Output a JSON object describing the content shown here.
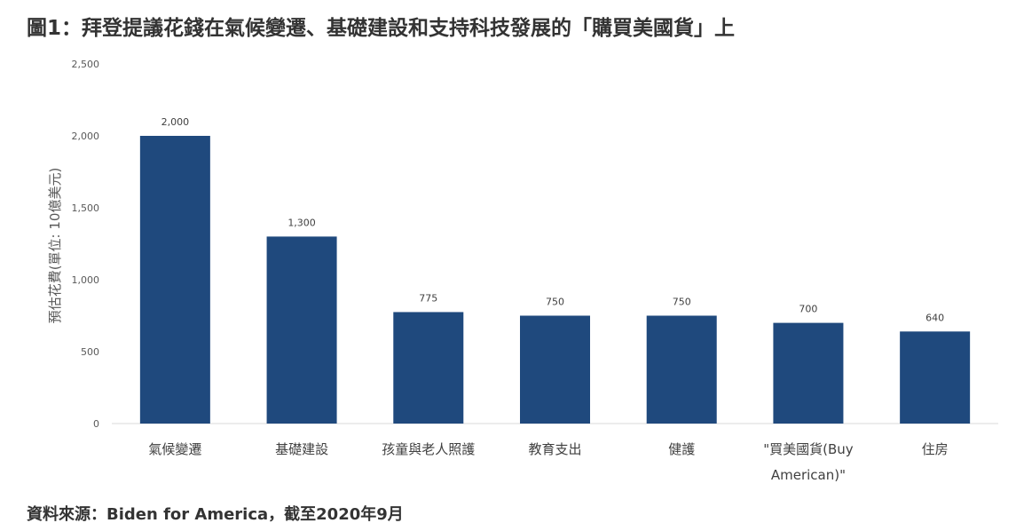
{
  "title": "圖1：拜登提議花錢在氣候變遷、基礎建設和支持科技發展的「購買美國貨」上",
  "source": "資料來源：Biden for America，截至2020年9月",
  "colors": {
    "bar": "#1f497d",
    "axis": "#d9d9d9"
  },
  "chart_data": {
    "type": "bar",
    "title": "圖1：拜登提議花錢在氣候變遷、基礎建設和支持科技發展的「購買美國貨」上",
    "ylabel": "預估花費(單位: 10億美元)",
    "xlabel": "",
    "ylim": [
      0,
      2500
    ],
    "yticks": [
      0,
      500,
      1000,
      1500,
      2000,
      2500
    ],
    "ytick_labels": [
      "0",
      "500",
      "1,000",
      "1,500",
      "2,000",
      "2,500"
    ],
    "grid": false,
    "categories": [
      [
        "氣候變遷"
      ],
      [
        "基礎建設"
      ],
      [
        "孩童與老人照護"
      ],
      [
        "教育支出"
      ],
      [
        "健護"
      ],
      [
        "\"買美國貨(Buy",
        "American)\""
      ],
      [
        "住房"
      ]
    ],
    "values": [
      2000,
      1300,
      775,
      750,
      750,
      700,
      640
    ],
    "value_labels": [
      "2,000",
      "1,300",
      "775",
      "750",
      "750",
      "700",
      "640"
    ]
  }
}
